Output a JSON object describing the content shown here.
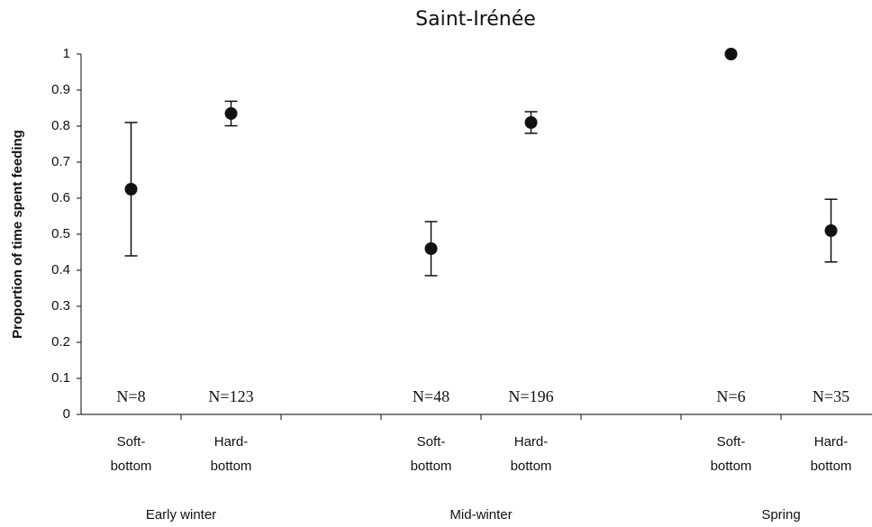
{
  "chart_data": {
    "type": "errorbar",
    "title": "Saint-Irénée",
    "y_label": "Proportion of time spent feeding",
    "categories": [
      [
        "Soft-",
        "bottom"
      ],
      [
        "Hard-",
        "bottom"
      ],
      null,
      [
        "Soft-",
        "bottom"
      ],
      [
        "Hard-",
        "bottom"
      ],
      null,
      [
        "Soft-",
        "bottom"
      ],
      [
        "Hard-",
        "bottom"
      ]
    ],
    "groups": [
      "Early winter",
      "Mid-winter",
      "Spring"
    ],
    "n_labels": [
      "N=8",
      "N=123",
      null,
      "N=48",
      "N=196",
      null,
      "N=6",
      "N=35"
    ],
    "series": [
      {
        "color": "#111111",
        "values": [
          0.625,
          0.835,
          null,
          0.46,
          0.81,
          null,
          1.0,
          0.51
        ],
        "errors": [
          0.185,
          0.034,
          null,
          0.075,
          0.03,
          null,
          0,
          0.087
        ]
      }
    ],
    "ylim": [
      0,
      1
    ],
    "yticks": [
      0,
      0.1,
      0.2,
      0.3,
      0.4,
      0.5,
      0.6,
      0.7,
      0.8,
      0.9,
      1
    ],
    "grid": false
  }
}
